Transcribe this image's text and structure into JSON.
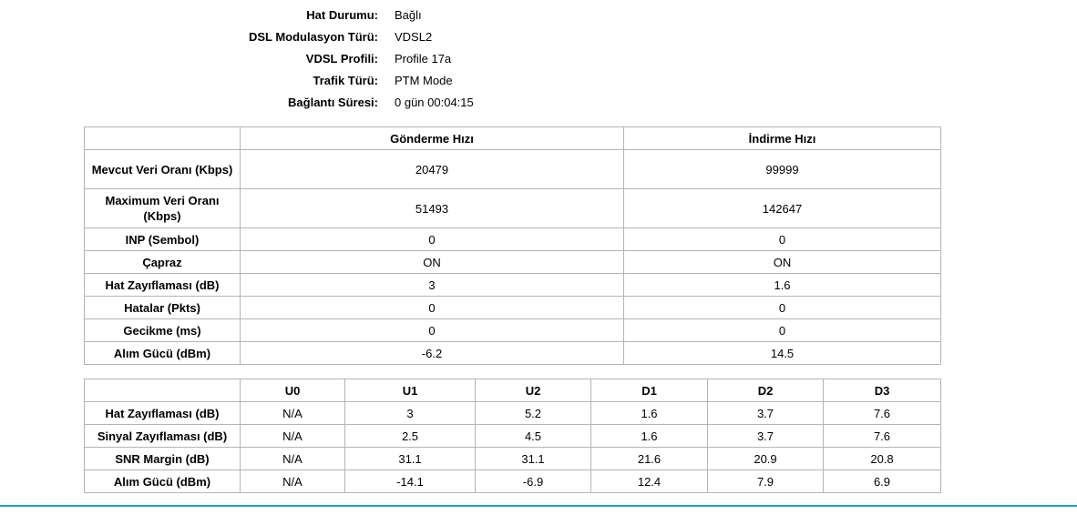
{
  "status": {
    "rows": [
      {
        "label": "Hat Durumu:",
        "value": "Bağlı"
      },
      {
        "label": "DSL Modulasyon Türü:",
        "value": "VDSL2"
      },
      {
        "label": "VDSL Profili:",
        "value": "Profile 17a"
      },
      {
        "label": "Trafik Türü:",
        "value": "PTM Mode"
      },
      {
        "label": "Bağlantı Süresi:",
        "value": "0 gün 00:04:15"
      }
    ]
  },
  "rates": {
    "headers": [
      "",
      "Gönderme Hızı",
      "İndirme Hızı"
    ],
    "rows": [
      {
        "label": "Mevcut Veri Oranı (Kbps)",
        "up": "20479",
        "down": "99999"
      },
      {
        "label": "Maximum Veri Oranı (Kbps)",
        "up": "51493",
        "down": "142647"
      },
      {
        "label": "INP (Sembol)",
        "up": "0",
        "down": "0"
      },
      {
        "label": "Çapraz",
        "up": "ON",
        "down": "ON"
      },
      {
        "label": "Hat Zayıflaması (dB)",
        "up": "3",
        "down": "1.6"
      },
      {
        "label": "Hatalar (Pkts)",
        "up": "0",
        "down": "0"
      },
      {
        "label": "Gecikme (ms)",
        "up": "0",
        "down": "0"
      },
      {
        "label": "Alım Gücü (dBm)",
        "up": "-6.2",
        "down": "14.5"
      }
    ]
  },
  "bands": {
    "headers": [
      "",
      "U0",
      "U1",
      "U2",
      "D1",
      "D2",
      "D3"
    ],
    "rows": [
      {
        "label": "Hat Zayıflaması (dB)",
        "values": [
          "N/A",
          "3",
          "5.2",
          "1.6",
          "3.7",
          "7.6"
        ]
      },
      {
        "label": "Sinyal Zayıflaması (dB)",
        "values": [
          "N/A",
          "2.5",
          "4.5",
          "1.6",
          "3.7",
          "7.6"
        ]
      },
      {
        "label": "SNR Margin (dB)",
        "values": [
          "N/A",
          "31.1",
          "31.1",
          "21.6",
          "20.9",
          "20.8"
        ]
      },
      {
        "label": "Alım Gücü (dBm)",
        "values": [
          "N/A",
          "-14.1",
          "-6.9",
          "12.4",
          "7.9",
          "6.9"
        ]
      }
    ]
  },
  "colors": {
    "border": "#b4b4b4",
    "accent_line": "#2a9bd8"
  }
}
